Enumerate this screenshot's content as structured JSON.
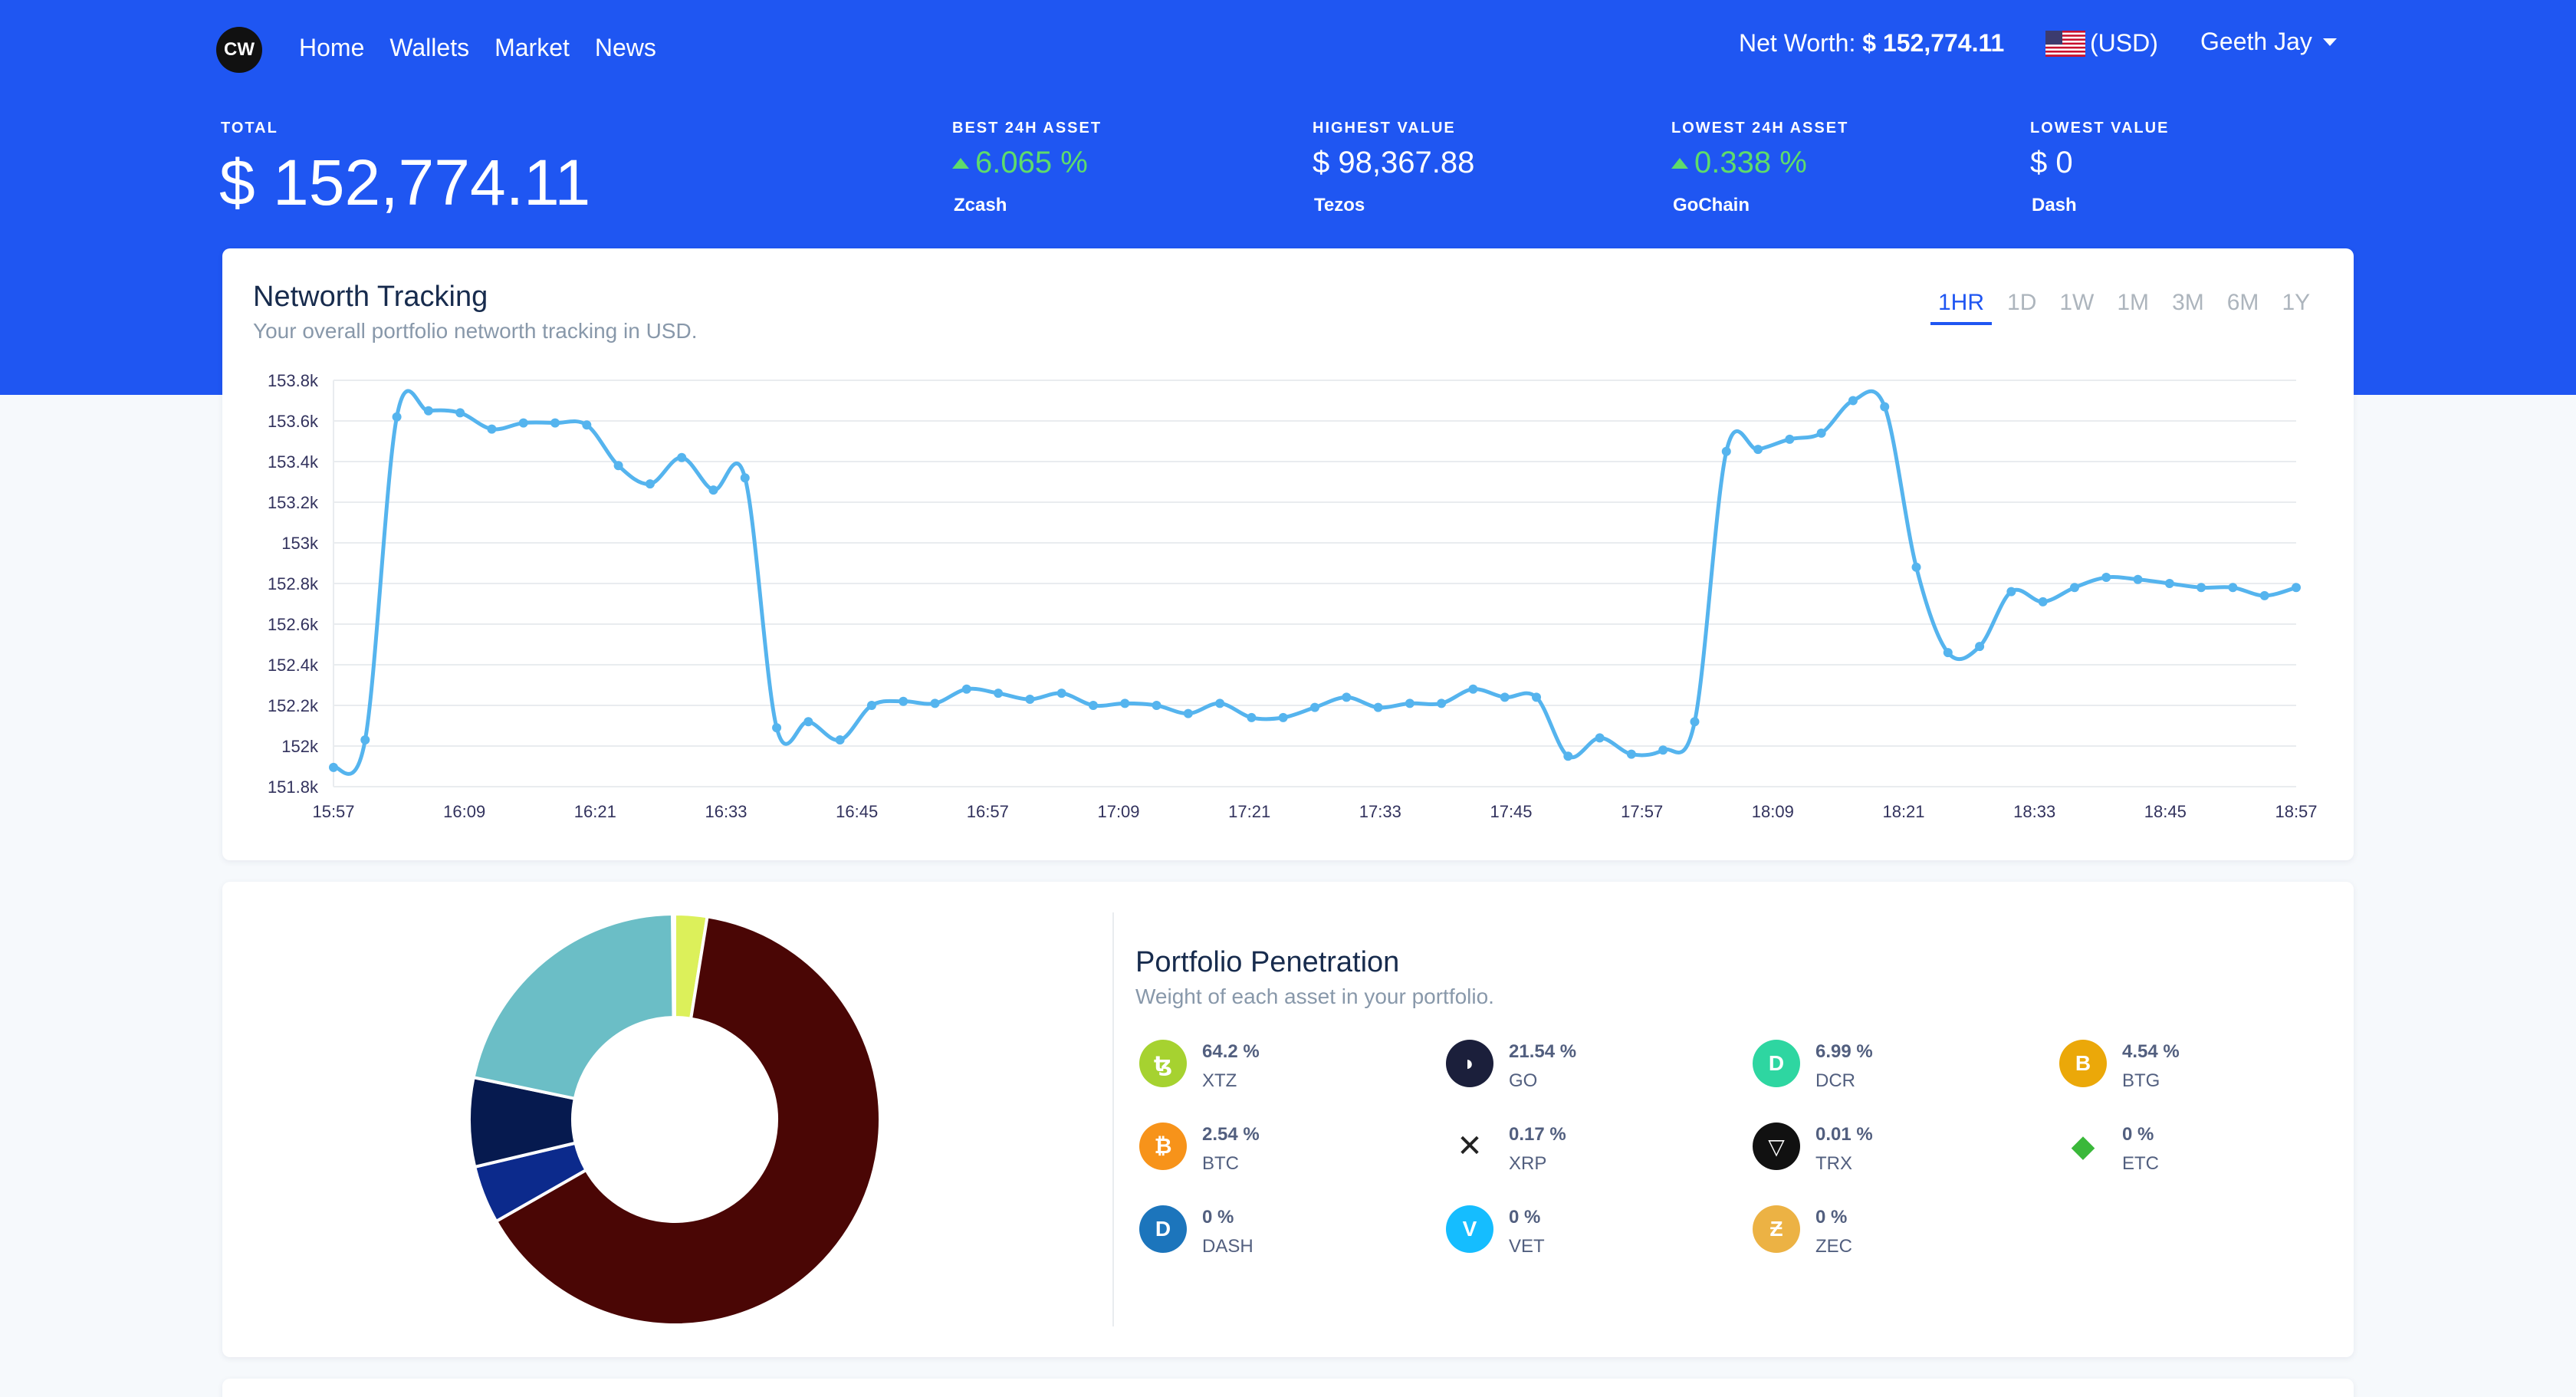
{
  "nav": {
    "logo": "CW",
    "links": [
      "Home",
      "Wallets",
      "Market",
      "News"
    ],
    "networth_label": "Net Worth:",
    "networth_value": "$ 152,774.11",
    "currency": "(USD)",
    "user": "Geeth Jay"
  },
  "stats": {
    "total_label": "TOTAL",
    "total_value": "$ 152,774.11",
    "best_label": "BEST 24H ASSET",
    "best_value": "6.065 %",
    "best_name": "Zcash",
    "highest_label": "HIGHEST VALUE",
    "highest_value": "$ 98,367.88",
    "highest_name": "Tezos",
    "lowest24_label": "LOWEST 24H ASSET",
    "lowest24_value": "0.338 %",
    "lowest24_name": "GoChain",
    "lowest_label": "LOWEST VALUE",
    "lowest_value": "$ 0",
    "lowest_name": "Dash"
  },
  "networth_card": {
    "title": "Networth Tracking",
    "subtitle": "Your overall portfolio networth tracking in USD.",
    "ranges": [
      "1HR",
      "1D",
      "1W",
      "1M",
      "3M",
      "6M",
      "1Y"
    ],
    "active_range": "1HR"
  },
  "penetration_card": {
    "title": "Portfolio Penetration",
    "subtitle": "Weight of each asset in your portfolio.",
    "assets": [
      {
        "pct": "64.2 %",
        "sym": "XTZ",
        "icon": "tezos-icon",
        "color": "#a6d230",
        "glyph": "ꜩ"
      },
      {
        "pct": "21.54 %",
        "sym": "GO",
        "icon": "gochain-icon",
        "color": "#1b1f3b",
        "glyph": "◗"
      },
      {
        "pct": "6.99 %",
        "sym": "DCR",
        "icon": "decred-icon",
        "color": "#2ed6a1",
        "glyph": "D"
      },
      {
        "pct": "4.54 %",
        "sym": "BTG",
        "icon": "bitcoin-gold-icon",
        "color": "#eba809",
        "glyph": "B"
      },
      {
        "pct": "2.54 %",
        "sym": "BTC",
        "icon": "bitcoin-icon",
        "color": "#f7931a",
        "glyph": "₿"
      },
      {
        "pct": "0.17 %",
        "sym": "XRP",
        "icon": "ripple-icon",
        "color": "#ffffff",
        "glyph": "✕"
      },
      {
        "pct": "0.01 %",
        "sym": "TRX",
        "icon": "tron-icon",
        "color": "#111111",
        "glyph": "▽"
      },
      {
        "pct": "0 %",
        "sym": "ETC",
        "icon": "ethereum-classic-icon",
        "color": "#ffffff",
        "glyph": "◆"
      },
      {
        "pct": "0 %",
        "sym": "DASH",
        "icon": "dash-icon",
        "color": "#1c75bc",
        "glyph": "D"
      },
      {
        "pct": "0 %",
        "sym": "VET",
        "icon": "vechain-icon",
        "color": "#15bdff",
        "glyph": "V"
      },
      {
        "pct": "0 %",
        "sym": "ZEC",
        "icon": "zcash-icon",
        "color": "#ecb244",
        "glyph": "Ƶ"
      }
    ]
  },
  "colors": {
    "brand_blue": "#1f56f2",
    "line": "#55b4ee",
    "positive": "#5edc6b"
  },
  "chart_data": [
    {
      "type": "line",
      "title": "",
      "xlabel": "",
      "ylabel": "",
      "x_ticks": [
        "15:57",
        "16:09",
        "16:21",
        "16:33",
        "16:45",
        "16:57",
        "17:09",
        "17:21",
        "17:33",
        "17:45",
        "17:57",
        "18:09",
        "18:21",
        "18:33",
        "18:45",
        "18:57"
      ],
      "y_ticks": [
        "151.8k",
        "152k",
        "152.2k",
        "152.4k",
        "152.6k",
        "152.8k",
        "153k",
        "153.2k",
        "153.4k",
        "153.6k",
        "153.8k"
      ],
      "ylim": [
        151800,
        153800
      ],
      "grid": true,
      "series": [
        {
          "values": [
            151895,
            152030,
            153620,
            153650,
            153640,
            153560,
            153590,
            153590,
            153580,
            153380,
            153290,
            153420,
            153260,
            153320,
            152090,
            152120,
            152030,
            152200,
            152220,
            152210,
            152280,
            152260,
            152230,
            152260,
            152200,
            152210,
            152200,
            152160,
            152210,
            152140,
            152140,
            152190,
            152240,
            152190,
            152210,
            152210,
            152280,
            152240,
            152240,
            151950,
            152040,
            151960,
            151980,
            152120,
            153450,
            153460,
            153510,
            153540,
            153700,
            153670,
            152880,
            152460,
            152490,
            152760,
            152710,
            152780,
            152830,
            152820,
            152800,
            152780,
            152780,
            152740,
            152780
          ]
        }
      ]
    },
    {
      "type": "pie",
      "title": "",
      "labels": [
        "XTZ",
        "GO",
        "DCR",
        "BTG",
        "BTC",
        "XRP",
        "TRX",
        "ETC",
        "DASH",
        "VET",
        "ZEC"
      ],
      "values": [
        64.2,
        21.54,
        6.99,
        4.54,
        2.54,
        0.17,
        0.01,
        0,
        0,
        0,
        0
      ],
      "colors": [
        "#4a0605",
        "#6bbec6",
        "#061a4f",
        "#0c2a8c",
        "#dcf05a",
        "#cccccc",
        "#999999",
        "#888888",
        "#777777",
        "#666666",
        "#555555"
      ],
      "donut": true
    }
  ]
}
